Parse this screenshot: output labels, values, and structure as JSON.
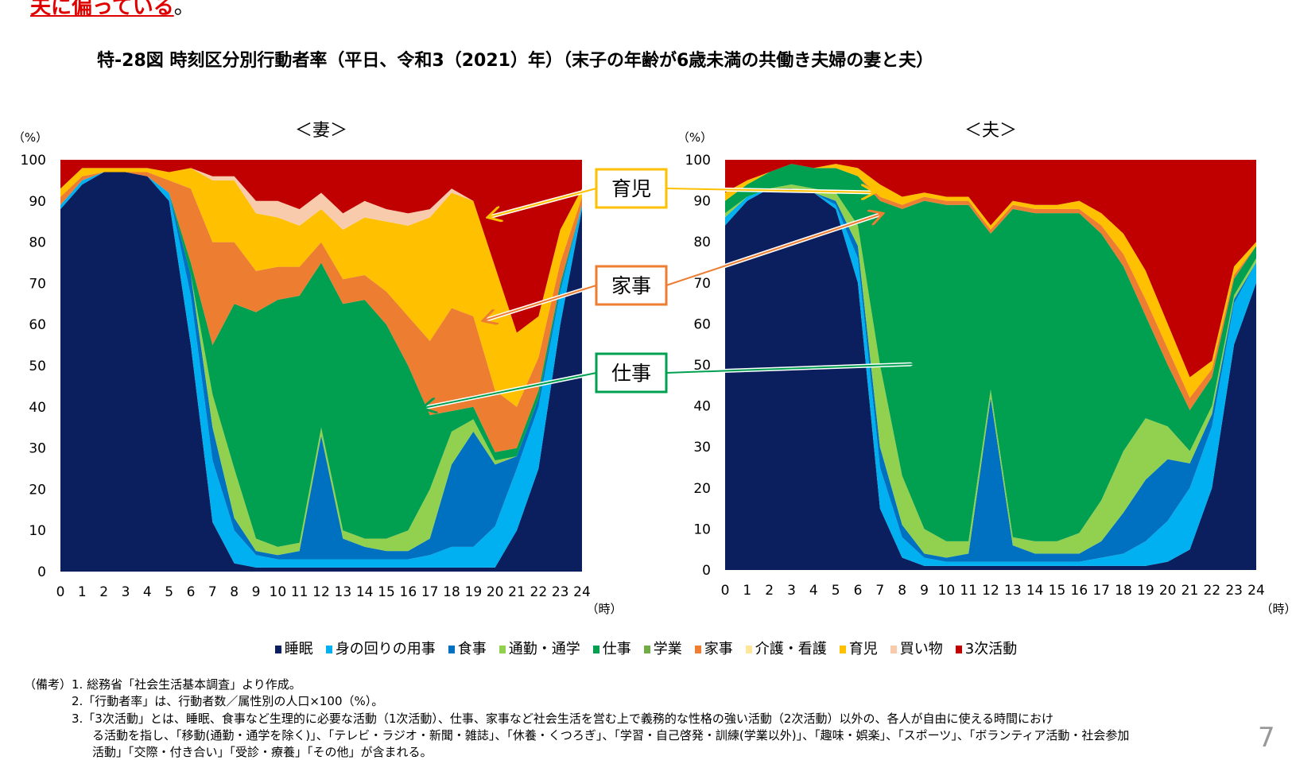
{
  "lead": {
    "text": "夫に偏っている",
    "suffix": "。"
  },
  "title": "特-28図 時刻区分別行動者率（平日、令和3（2021）年）（末子の年齢が6歳未満の共働き夫婦の妻と夫）",
  "callouts": {
    "childcare": "育児",
    "housework": "家事",
    "work": "仕事",
    "colors": {
      "childcare": "#ffc000",
      "housework": "#ed7d31",
      "work": "#00a050"
    }
  },
  "notes": [
    "（備考）1. 総務省「社会生活基本調査」より作成。",
    "2.「行動者率」は、行動者数／属性別の人口×100（%）。",
    "3.「3次活動」とは、睡眠、食事など生理的に必要な活動（1次活動）、仕事、家事など社会生活を営む上で義務的な性格の強い活動（2次活動）以外の、各人が自由に使える時間におけ",
    "る活動を指し、「移動(通勤・通学を除く)」、「テレビ・ラジオ・新聞・雑誌」、「休養・くつろぎ」、「学習・自己啓発・訓練(学業以外)」、「趣味・娯楽」、「スポーツ」、「ボランティア活動・社会参加",
    "活動」「交際・付き合い」「受診・療養」「その他」が含まれる。"
  ],
  "page_number": "7",
  "chart_data": [
    {
      "type": "area",
      "stacked": true,
      "title": "＜妻＞",
      "ylabel": "（%）",
      "xlabel": "（時）",
      "ylim": [
        0,
        100
      ],
      "yticks": [
        "0",
        "10",
        "20",
        "30",
        "40",
        "50",
        "60",
        "70",
        "80",
        "90",
        "100"
      ],
      "x": [
        0,
        1,
        2,
        3,
        4,
        5,
        6,
        7,
        8,
        9,
        10,
        11,
        12,
        13,
        14,
        15,
        16,
        17,
        18,
        19,
        20,
        21,
        22,
        23,
        24
      ],
      "series": [
        {
          "name": "睡眠",
          "color": "#0b1f5e",
          "values": [
            88,
            94,
            97,
            97,
            96,
            90,
            55,
            12,
            2,
            1,
            1,
            1,
            1,
            1,
            1,
            1,
            1,
            1,
            1,
            1,
            1,
            10,
            25,
            60,
            88
          ]
        },
        {
          "name": "身の回りの用事",
          "color": "#00b0f0",
          "values": [
            1,
            1,
            0,
            0,
            0,
            2,
            12,
            15,
            8,
            3,
            2,
            2,
            2,
            2,
            2,
            2,
            2,
            3,
            5,
            5,
            10,
            15,
            15,
            8,
            1
          ]
        },
        {
          "name": "食事",
          "color": "#0070c0",
          "values": [
            0,
            0,
            0,
            0,
            0,
            0,
            5,
            8,
            3,
            1,
            1,
            2,
            30,
            5,
            3,
            2,
            2,
            4,
            20,
            28,
            15,
            3,
            2,
            1,
            0
          ]
        },
        {
          "name": "通勤・通学",
          "color": "#92d050",
          "values": [
            0,
            0,
            0,
            0,
            0,
            0,
            0,
            8,
            12,
            3,
            2,
            2,
            2,
            2,
            2,
            3,
            5,
            12,
            8,
            3,
            1,
            0,
            0,
            0,
            0
          ]
        },
        {
          "name": "仕事",
          "color": "#00a050",
          "values": [
            0,
            0,
            0,
            0,
            0,
            0,
            3,
            12,
            40,
            55,
            60,
            60,
            40,
            55,
            58,
            52,
            40,
            18,
            5,
            3,
            2,
            2,
            2,
            1,
            0
          ]
        },
        {
          "name": "学業",
          "color": "#70ad47",
          "values": [
            0,
            0,
            0,
            0,
            0,
            0,
            0,
            0,
            0,
            0,
            0,
            0,
            0,
            0,
            0,
            0,
            0,
            0,
            0,
            0,
            0,
            0,
            0,
            0,
            0
          ]
        },
        {
          "name": "家事",
          "color": "#ed7d31",
          "values": [
            2,
            1,
            0,
            0,
            1,
            3,
            18,
            25,
            15,
            10,
            8,
            7,
            5,
            6,
            6,
            8,
            12,
            18,
            25,
            22,
            15,
            10,
            8,
            5,
            2
          ]
        },
        {
          "name": "介護・看護",
          "color": "#ffe699",
          "values": [
            0,
            0,
            0,
            0,
            0,
            0,
            0,
            0,
            0,
            0,
            0,
            0,
            0,
            0,
            0,
            0,
            0,
            0,
            0,
            0,
            0,
            0,
            0,
            0,
            0
          ]
        },
        {
          "name": "育児",
          "color": "#ffc000",
          "values": [
            2,
            2,
            1,
            1,
            1,
            2,
            5,
            15,
            15,
            14,
            12,
            10,
            8,
            12,
            14,
            17,
            22,
            30,
            28,
            28,
            30,
            18,
            10,
            8,
            2
          ]
        },
        {
          "name": "買い物",
          "color": "#f8cbad",
          "values": [
            0,
            0,
            0,
            0,
            0,
            0,
            0,
            1,
            1,
            3,
            4,
            4,
            4,
            4,
            4,
            3,
            3,
            2,
            1,
            0,
            0,
            0,
            0,
            0,
            0
          ]
        },
        {
          "name": "3次活動",
          "color": "#c00000",
          "values": [
            7,
            2,
            2,
            2,
            2,
            3,
            2,
            4,
            4,
            10,
            10,
            12,
            8,
            13,
            10,
            12,
            13,
            12,
            7,
            10,
            26,
            42,
            38,
            17,
            7
          ]
        }
      ]
    },
    {
      "type": "area",
      "stacked": true,
      "title": "＜夫＞",
      "ylabel": "（%）",
      "xlabel": "（時）",
      "ylim": [
        0,
        100
      ],
      "yticks": [
        "0",
        "10",
        "20",
        "30",
        "40",
        "50",
        "60",
        "70",
        "80",
        "90",
        "100"
      ],
      "x": [
        0,
        1,
        2,
        3,
        4,
        5,
        6,
        7,
        8,
        9,
        10,
        11,
        12,
        13,
        14,
        15,
        16,
        17,
        18,
        19,
        20,
        21,
        22,
        23,
        24
      ],
      "series": [
        {
          "name": "睡眠",
          "color": "#0b1f5e",
          "values": [
            84,
            90,
            93,
            93,
            92,
            88,
            70,
            15,
            3,
            1,
            1,
            1,
            1,
            1,
            1,
            1,
            1,
            1,
            1,
            1,
            2,
            5,
            20,
            55,
            70
          ]
        },
        {
          "name": "身の回りの用事",
          "color": "#00b0f0",
          "values": [
            2,
            1,
            0,
            0,
            0,
            1,
            6,
            10,
            5,
            2,
            1,
            1,
            1,
            1,
            1,
            1,
            1,
            2,
            3,
            6,
            10,
            15,
            15,
            10,
            5
          ]
        },
        {
          "name": "食事",
          "color": "#0070c0",
          "values": [
            0,
            0,
            0,
            0,
            0,
            1,
            3,
            5,
            3,
            1,
            1,
            2,
            40,
            4,
            2,
            2,
            2,
            4,
            10,
            15,
            15,
            6,
            3,
            1,
            0
          ]
        },
        {
          "name": "通勤・通学",
          "color": "#92d050",
          "values": [
            1,
            0,
            0,
            1,
            1,
            2,
            5,
            20,
            12,
            6,
            4,
            3,
            2,
            2,
            3,
            3,
            5,
            10,
            15,
            15,
            8,
            3,
            2,
            1,
            1
          ]
        },
        {
          "name": "仕事",
          "color": "#00a050",
          "values": [
            3,
            3,
            4,
            5,
            5,
            6,
            12,
            40,
            65,
            80,
            82,
            82,
            38,
            80,
            80,
            80,
            78,
            65,
            45,
            25,
            15,
            10,
            7,
            4,
            3
          ]
        },
        {
          "name": "学業",
          "color": "#70ad47",
          "values": [
            0,
            0,
            0,
            0,
            0,
            0,
            0,
            0,
            0,
            0,
            0,
            0,
            0,
            0,
            0,
            0,
            0,
            0,
            0,
            0,
            0,
            0,
            0,
            0,
            0
          ]
        },
        {
          "name": "家事",
          "color": "#ed7d31",
          "values": [
            0,
            0,
            0,
            0,
            0,
            0,
            0,
            1,
            1,
            1,
            1,
            1,
            1,
            1,
            1,
            1,
            1,
            2,
            3,
            4,
            4,
            3,
            2,
            1,
            0
          ]
        },
        {
          "name": "介護・看護",
          "color": "#ffe699",
          "values": [
            0,
            0,
            0,
            0,
            0,
            0,
            0,
            0,
            0,
            0,
            0,
            0,
            0,
            0,
            0,
            0,
            0,
            0,
            0,
            0,
            0,
            0,
            0,
            0,
            0
          ]
        },
        {
          "name": "育児",
          "color": "#ffc000",
          "values": [
            2,
            1,
            0,
            0,
            0,
            1,
            2,
            3,
            2,
            1,
            1,
            1,
            1,
            1,
            1,
            1,
            2,
            3,
            5,
            7,
            6,
            5,
            2,
            2,
            1
          ]
        },
        {
          "name": "買い物",
          "color": "#f8cbad",
          "values": [
            0,
            0,
            0,
            0,
            0,
            0,
            0,
            0,
            0,
            0,
            0,
            0,
            0,
            0,
            0,
            0,
            0,
            0,
            0,
            0,
            0,
            0,
            0,
            0,
            0
          ]
        },
        {
          "name": "3次活動",
          "color": "#c00000",
          "values": [
            8,
            5,
            3,
            1,
            2,
            1,
            2,
            6,
            9,
            8,
            9,
            9,
            16,
            10,
            11,
            11,
            10,
            13,
            18,
            27,
            40,
            53,
            49,
            26,
            20
          ]
        }
      ]
    }
  ]
}
